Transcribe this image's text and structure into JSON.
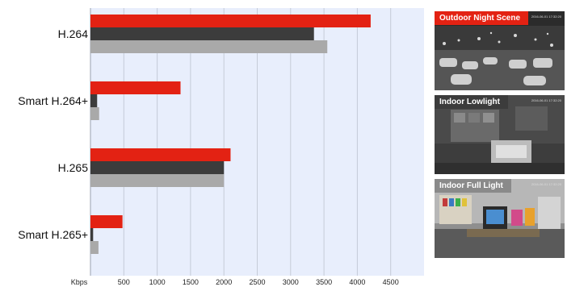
{
  "chart_data": {
    "type": "bar",
    "orientation": "horizontal",
    "categories": [
      "H.264",
      "Smart H.264+",
      "H.265",
      "Smart H.265+"
    ],
    "series": [
      {
        "color": "#e32213",
        "values": [
          4200,
          1350,
          2100,
          480
        ]
      },
      {
        "color": "#3c3c3c",
        "values": [
          3350,
          100,
          2000,
          40
        ]
      },
      {
        "color": "#a9a9a9",
        "values": [
          3550,
          130,
          2000,
          120
        ]
      }
    ],
    "x_tick_labels": [
      "Kbps",
      "500",
      "1000",
      "1500",
      "2000",
      "2500",
      "3000",
      "3500",
      "4000",
      "4500"
    ],
    "x_ticks": [
      0,
      500,
      1000,
      1500,
      2000,
      2500,
      3000,
      3500,
      4000,
      4500
    ],
    "xlim": [
      0,
      5000
    ],
    "grid": true,
    "legend": "none"
  },
  "scenes": [
    {
      "label": "Outdoor Night Scene",
      "label_color": "#e32213",
      "stamp": "2016-06-01 17:32:20",
      "kind": "night"
    },
    {
      "label": "Indoor Lowlight",
      "label_color": "#3c3c3c",
      "stamp": "2016-06-01 17:32:20",
      "kind": "lowlight"
    },
    {
      "label": "Indoor Full Light",
      "label_color": "#8a8a8a",
      "stamp": "2016-06-01 17:32:20",
      "kind": "full"
    }
  ],
  "colors": {
    "plot_background": "#e8eefc",
    "grid": "#c5cbd8"
  }
}
